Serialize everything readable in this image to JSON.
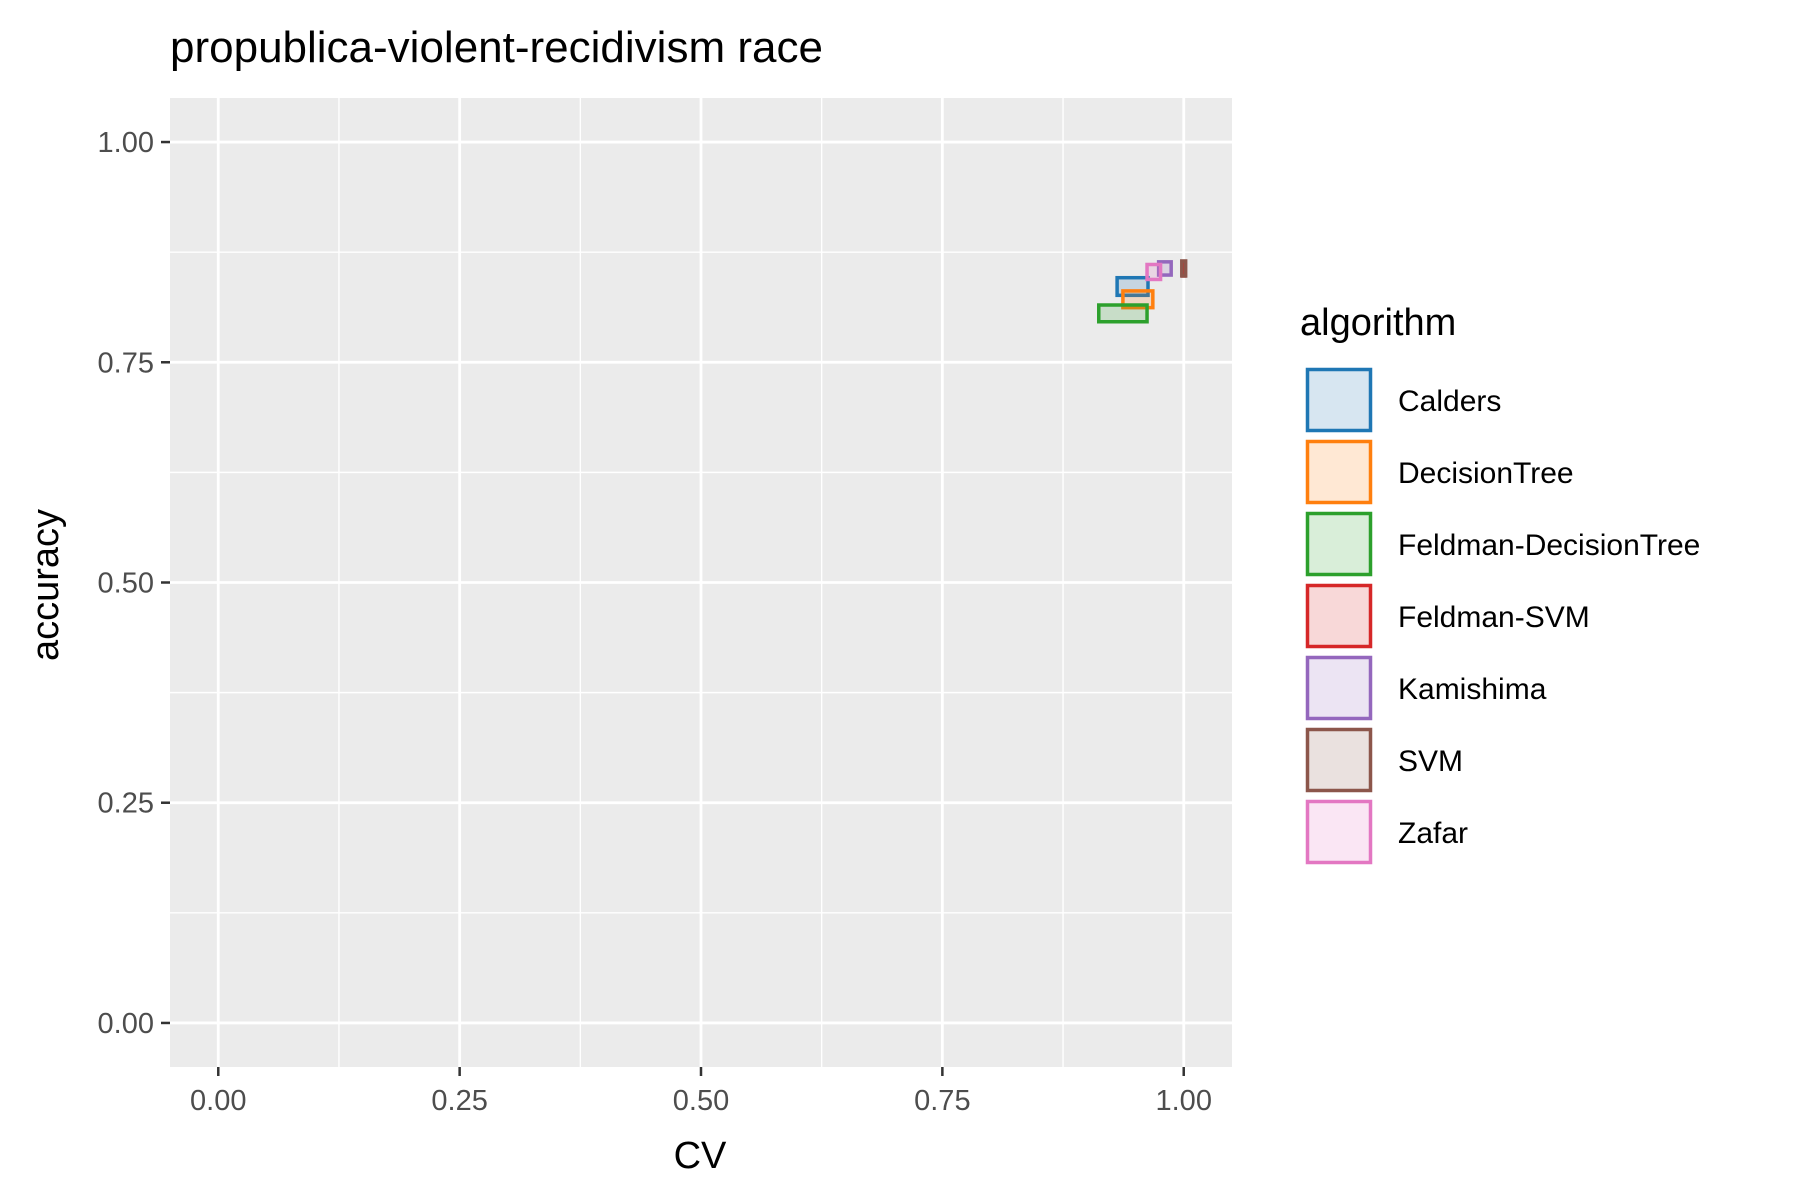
{
  "chart_data": {
    "type": "rect",
    "title": "propublica-violent-recidivism race",
    "xlabel": "CV",
    "ylabel": "accuracy",
    "xlim": [
      -0.05,
      1.05
    ],
    "ylim": [
      -0.05,
      1.05
    ],
    "x_ticks": [
      0,
      0.25,
      0.5,
      0.75,
      1.0
    ],
    "x_tick_labels": [
      "0.00",
      "0.25",
      "0.50",
      "0.75",
      "1.00"
    ],
    "y_ticks": [
      0,
      0.25,
      0.5,
      0.75,
      1.0
    ],
    "y_tick_labels": [
      "0.00",
      "0.25",
      "0.50",
      "0.75",
      "1.00"
    ],
    "grid": true,
    "legend": {
      "title": "algorithm",
      "position": "right"
    },
    "series": [
      {
        "name": "Calders",
        "color": "#1f77b4",
        "x_range": [
          0.931,
          0.963
        ],
        "y_range": [
          0.826,
          0.846
        ]
      },
      {
        "name": "DecisionTree",
        "color": "#ff7f0e",
        "x_range": [
          0.937,
          0.968
        ],
        "y_range": [
          0.812,
          0.831
        ]
      },
      {
        "name": "Feldman-DecisionTree",
        "color": "#2ca02c",
        "x_range": [
          0.912,
          0.962
        ],
        "y_range": [
          0.796,
          0.815
        ]
      },
      {
        "name": "Feldman-SVM",
        "color": "#d62728",
        "x_range": [
          0.999,
          1.001
        ],
        "y_range": [
          0.848,
          0.864
        ]
      },
      {
        "name": "Kamishima",
        "color": "#9467bd",
        "x_range": [
          0.974,
          0.987
        ],
        "y_range": [
          0.849,
          0.864
        ]
      },
      {
        "name": "SVM",
        "color": "#8c564b",
        "x_range": [
          0.998,
          1.002
        ],
        "y_range": [
          0.848,
          0.865
        ]
      },
      {
        "name": "Zafar",
        "color": "#e377c2",
        "x_range": [
          0.962,
          0.976
        ],
        "y_range": [
          0.844,
          0.861
        ]
      }
    ]
  }
}
